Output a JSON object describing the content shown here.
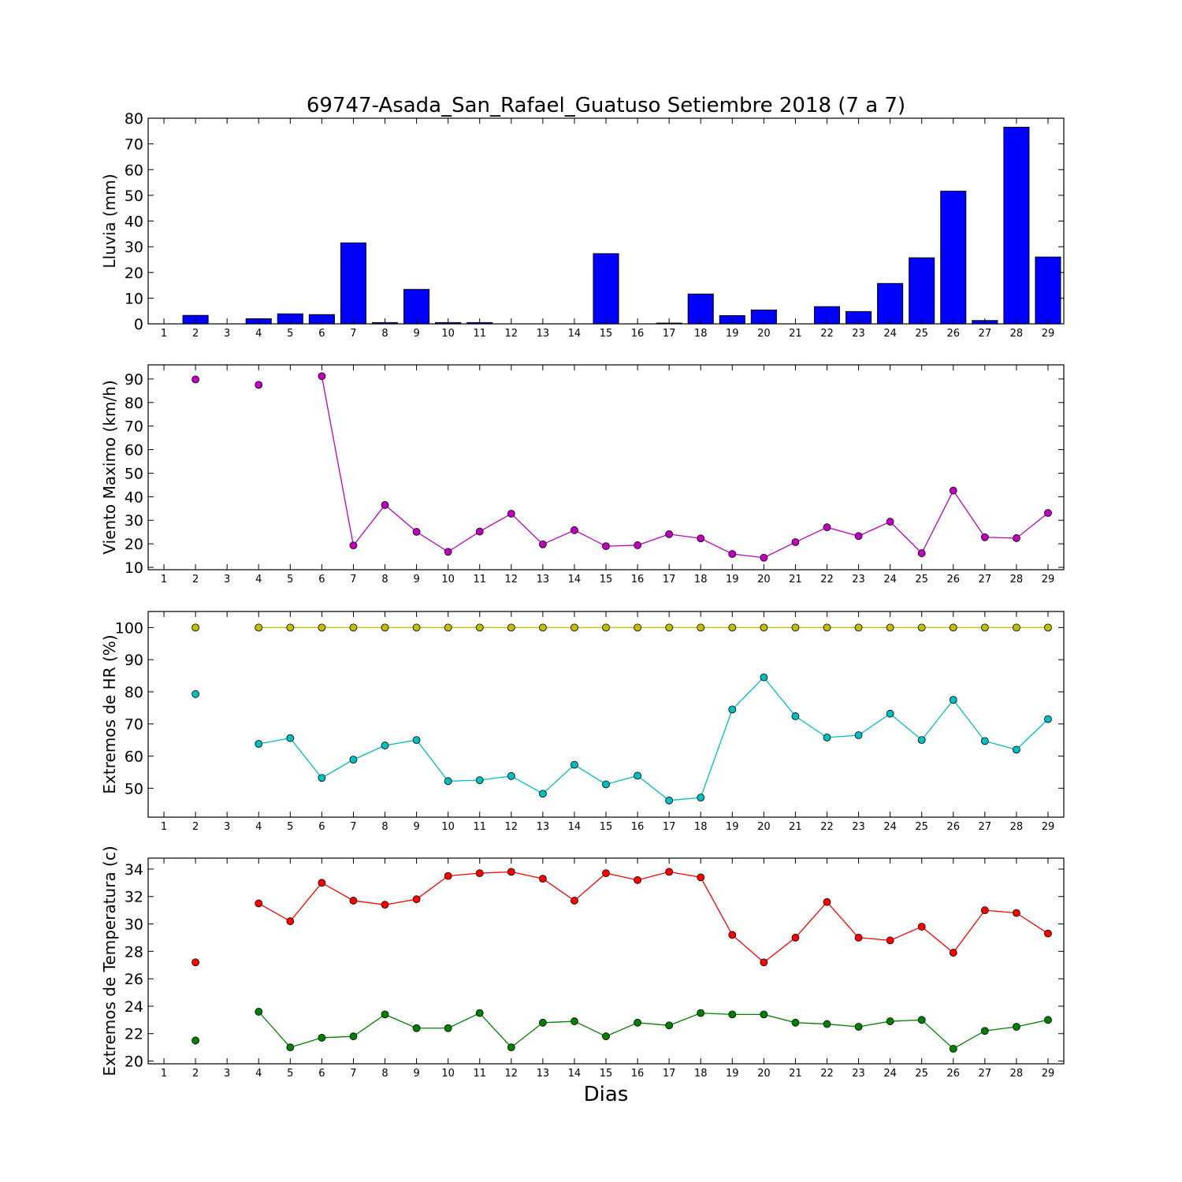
{
  "chart_data": {
    "title": "69747-Asada_San_Rafael_Guatuso Setiembre 2018  (7 a 7)",
    "xlabel": "Dias",
    "days": [
      1,
      2,
      3,
      4,
      5,
      6,
      7,
      8,
      9,
      10,
      11,
      12,
      13,
      14,
      15,
      16,
      17,
      18,
      19,
      20,
      21,
      22,
      23,
      24,
      25,
      26,
      27,
      28,
      29
    ],
    "panels": [
      {
        "id": "rain",
        "type": "bar",
        "ylabel": "Lluvia (mm)",
        "ylim": [
          0,
          80
        ],
        "yticks": [
          0,
          10,
          20,
          30,
          40,
          50,
          60,
          70,
          80
        ],
        "series": [
          {
            "color": "#0000ff",
            "values": [
              0,
              3.3,
              0,
              2.0,
              3.9,
              3.6,
              31.5,
              0.5,
              13.4,
              0.5,
              0.5,
              0,
              0,
              0,
              27.3,
              0,
              0.3,
              11.6,
              3.2,
              5.4,
              0,
              6.7,
              4.8,
              15.7,
              25.7,
              51.6,
              1.3,
              76.5,
              26.0
            ]
          }
        ]
      },
      {
        "id": "wind",
        "type": "line",
        "ylabel": "Viento Maximo (km/h)",
        "ylim": [
          9,
          96
        ],
        "yticks": [
          10,
          20,
          30,
          40,
          50,
          60,
          70,
          80,
          90
        ],
        "series": [
          {
            "color": "#bf00bf",
            "values": [
              null,
              89.8,
              null,
              87.5,
              null,
              91.2,
              19.3,
              36.5,
              25.1,
              16.6,
              25.2,
              32.8,
              19.8,
              25.8,
              19.0,
              19.4,
              24.1,
              22.3,
              15.7,
              14.1,
              20.7,
              27.0,
              23.3,
              29.4,
              16.0,
              42.6,
              22.8,
              22.4,
              33.1
            ]
          }
        ]
      },
      {
        "id": "hr",
        "type": "line",
        "ylabel": "Extremos de HR (%)",
        "ylim": [
          41,
          105
        ],
        "yticks": [
          50,
          60,
          70,
          80,
          90,
          100
        ],
        "series": [
          {
            "color": "#bfbf00",
            "values": [
              null,
              100,
              null,
              100,
              100,
              100,
              100,
              100,
              100,
              100,
              100,
              100,
              100,
              100,
              100,
              100,
              100,
              100,
              100,
              100,
              100,
              100,
              100,
              100,
              100,
              100,
              100,
              100,
              100
            ]
          },
          {
            "color": "#00bfbf",
            "values": [
              null,
              79.3,
              null,
              63.8,
              65.6,
              53.2,
              58.9,
              63.3,
              65.0,
              52.2,
              52.5,
              53.8,
              48.3,
              57.3,
              51.2,
              53.9,
              46.2,
              47.1,
              74.5,
              84.5,
              72.4,
              65.8,
              66.5,
              73.2,
              65.0,
              77.5,
              64.7,
              62.0,
              71.5
            ]
          }
        ]
      },
      {
        "id": "temp",
        "type": "line",
        "ylabel": "Extremos de Temperatura (c)",
        "ylim": [
          19.8,
          34.8
        ],
        "yticks": [
          20,
          22,
          24,
          26,
          28,
          30,
          32,
          34
        ],
        "series": [
          {
            "color": "#ff0000",
            "values": [
              null,
              27.2,
              null,
              31.5,
              30.2,
              33.0,
              31.7,
              31.4,
              31.8,
              33.5,
              33.7,
              33.8,
              33.3,
              31.7,
              33.7,
              33.2,
              33.8,
              33.4,
              29.2,
              27.2,
              29.0,
              31.6,
              29.0,
              28.8,
              29.8,
              27.9,
              31.0,
              30.8,
              29.3
            ]
          },
          {
            "color": "#008000",
            "values": [
              null,
              21.5,
              null,
              23.6,
              21.0,
              21.7,
              21.8,
              23.4,
              22.4,
              22.4,
              23.5,
              21.0,
              22.8,
              22.9,
              21.8,
              22.8,
              22.6,
              23.5,
              23.4,
              23.4,
              22.8,
              22.7,
              22.5,
              22.9,
              23.0,
              20.9,
              22.2,
              22.5,
              23.0
            ]
          }
        ]
      }
    ]
  }
}
